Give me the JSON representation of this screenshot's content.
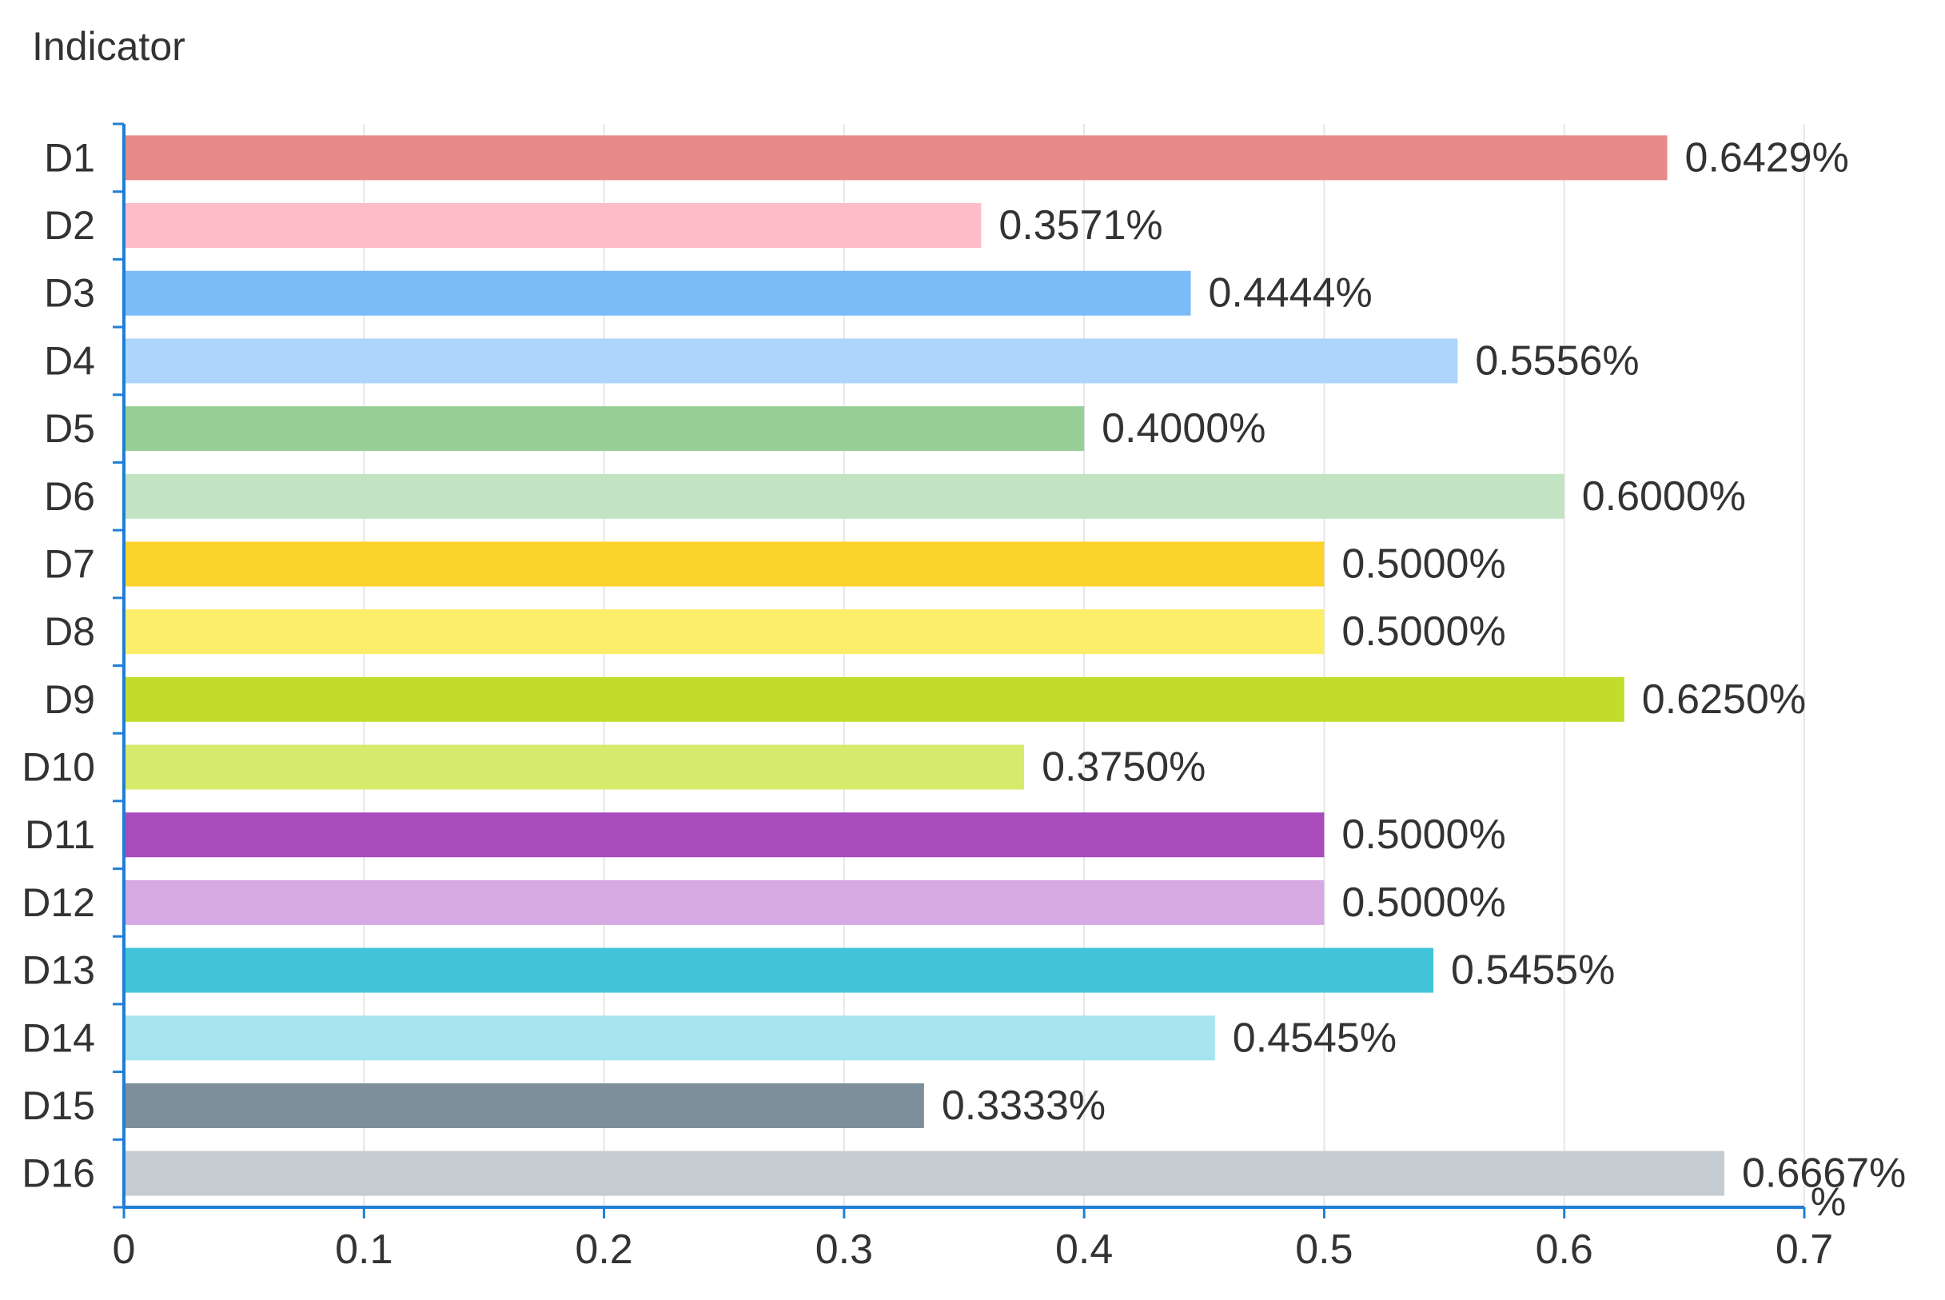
{
  "chart_data": {
    "type": "bar",
    "orientation": "horizontal",
    "ylabel": "Indicator",
    "xlabel": "%",
    "value_suffix": "%",
    "categories": [
      "D1",
      "D2",
      "D3",
      "D4",
      "D5",
      "D6",
      "D7",
      "D8",
      "D9",
      "D10",
      "D11",
      "D12",
      "D13",
      "D14",
      "D15",
      "D16"
    ],
    "values": [
      0.6429,
      0.3571,
      0.4444,
      0.5556,
      0.4,
      0.6,
      0.5,
      0.5,
      0.625,
      0.375,
      0.5,
      0.5,
      0.5455,
      0.4545,
      0.3333,
      0.6667
    ],
    "value_labels": [
      "0.6429%",
      "0.3571%",
      "0.4444%",
      "0.5556%",
      "0.4000%",
      "0.6000%",
      "0.5000%",
      "0.5000%",
      "0.6250%",
      "0.3750%",
      "0.5000%",
      "0.5000%",
      "0.5455%",
      "0.4545%",
      "0.3333%",
      "0.6667%"
    ],
    "colors": [
      "#e88a8a",
      "#fcbcc8",
      "#7bbbf7",
      "#aed5fb",
      "#97cf97",
      "#c2e4c2",
      "#fcd22c",
      "#fdee6a",
      "#c2dc2c",
      "#d6ea6b",
      "#a84cbd",
      "#d7a9e3",
      "#42c4d8",
      "#a6e5ee",
      "#7d8f9b",
      "#c5cdd3"
    ],
    "xlim": [
      0,
      0.7
    ],
    "xticks": [
      0,
      0.1,
      0.2,
      0.3,
      0.4,
      0.5,
      0.6,
      0.7
    ],
    "xtick_labels": [
      "0",
      "0.1",
      "0.2",
      "0.3",
      "0.4",
      "0.5",
      "0.6",
      "0.7"
    ],
    "grid": true,
    "axis_color": "#1f7fd6",
    "grid_color": "#e6e6e6"
  }
}
